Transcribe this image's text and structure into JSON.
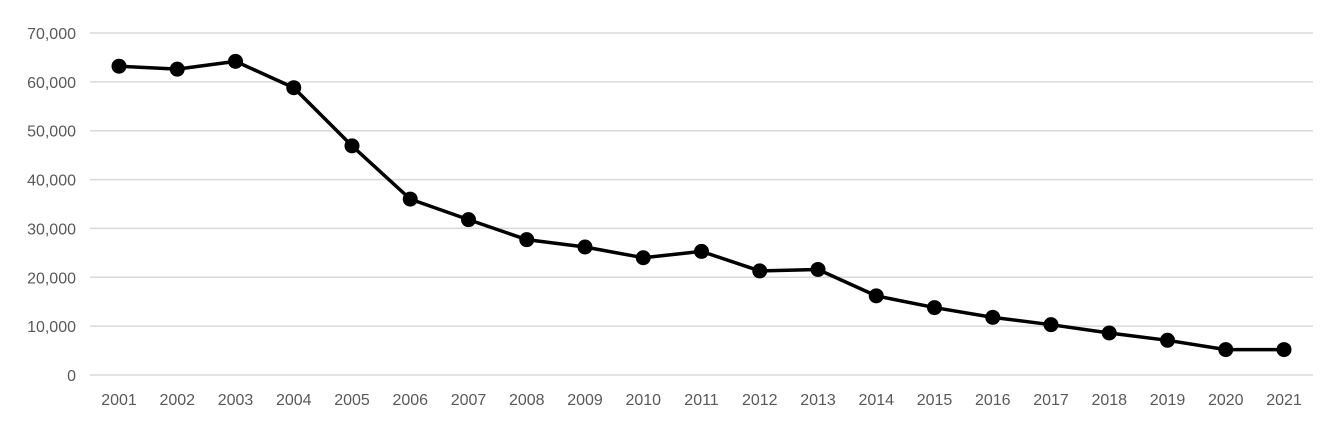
{
  "chart_data": {
    "type": "line",
    "title": "",
    "xlabel": "",
    "ylabel": "",
    "categories": [
      "2001",
      "2002",
      "2003",
      "2004",
      "2005",
      "2006",
      "2007",
      "2008",
      "2009",
      "2010",
      "2011",
      "2012",
      "2013",
      "2014",
      "2015",
      "2016",
      "2017",
      "2018",
      "2019",
      "2020",
      "2021"
    ],
    "series": [
      {
        "values": [
          63200,
          62600,
          64200,
          58800,
          46900,
          36000,
          31800,
          27700,
          26200,
          24000,
          25300,
          21300,
          21600,
          16200,
          13800,
          11800,
          10300,
          8600,
          7100,
          5200,
          5200
        ],
        "color": "#000000"
      }
    ],
    "ylim": [
      0,
      70000
    ],
    "yticks": [
      0,
      10000,
      20000,
      30000,
      40000,
      50000,
      60000,
      70000
    ],
    "ytick_labels": [
      "0",
      "10,000",
      "20,000",
      "30,000",
      "40,000",
      "50,000",
      "60,000",
      "70,000"
    ],
    "grid": true,
    "legend": "none",
    "gridline_color": "#d9d9d9",
    "tick_label_color": "#595959"
  }
}
